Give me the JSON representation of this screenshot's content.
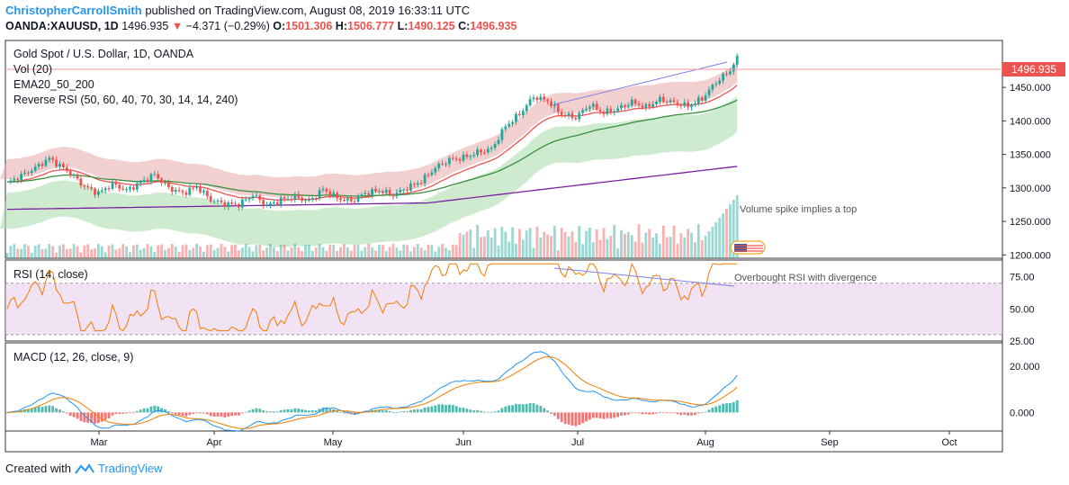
{
  "header": {
    "author": "ChristopherCarrollSmith",
    "published": "published on TradingView.com, August 08, 2019 16:33:11 UTC",
    "symbol": "OANDA:XAUUSD, 1D",
    "price": "1496.935",
    "change": "−4.371 (−0.29%)",
    "o_label": "O:",
    "o": "1501.306",
    "h_label": "H:",
    "h": "1506.777",
    "l_label": "L:",
    "l": "1490.125",
    "c_label": "C:",
    "c": "1496.935"
  },
  "legend": {
    "title": "Gold Spot / U.S. Dollar, 1D, OANDA",
    "vol": "Vol (20)",
    "ema": "EMA20_50_200",
    "rrsi": "Reverse RSI (50, 60, 40, 70, 30, 14, 14, 240)",
    "rsi": "RSI (14, close)",
    "macd": "MACD (12, 26, close, 9)"
  },
  "annotations": {
    "volume": "Volume spike implies a top",
    "rsi": "Overbought RSI with divergence"
  },
  "price_tag": "1496.935",
  "footer": {
    "created": "Created with",
    "brand": "TradingView"
  },
  "colors": {
    "up": "#26a69a",
    "down": "#ef5350",
    "ema20": "#ef5350",
    "ema50": "#388e3c",
    "ema200": "#7b1fa2",
    "rsi": "#f57c00",
    "macd": "#2196f3",
    "signal": "#f57c00",
    "trend": "#7b7fe8",
    "band_red": "#e8a9a9",
    "band_green": "#a8dba8"
  },
  "chart_data": [
    {
      "type": "candlestick",
      "title": "Gold Spot / U.S. Dollar, 1D, OANDA",
      "x_ticks": [
        "Mar",
        "Apr",
        "May",
        "Jun",
        "Jul",
        "Aug",
        "Sep",
        "Oct"
      ],
      "y_ticks": [
        "1200.000",
        "1250.000",
        "1300.000",
        "1350.000",
        "1400.000",
        "1450.000"
      ],
      "ylim": [
        1195,
        1520
      ],
      "anchors": [
        [
          0,
          1307
        ],
        [
          8,
          1330
        ],
        [
          12,
          1344
        ],
        [
          18,
          1322
        ],
        [
          22,
          1302
        ],
        [
          26,
          1292
        ],
        [
          30,
          1306
        ],
        [
          34,
          1296
        ],
        [
          38,
          1308
        ],
        [
          42,
          1320
        ],
        [
          46,
          1300
        ],
        [
          50,
          1292
        ],
        [
          54,
          1302
        ],
        [
          58,
          1282
        ],
        [
          62,
          1276
        ],
        [
          66,
          1275
        ],
        [
          70,
          1290
        ],
        [
          74,
          1273
        ],
        [
          78,
          1282
        ],
        [
          82,
          1287
        ],
        [
          86,
          1280
        ],
        [
          90,
          1298
        ],
        [
          94,
          1285
        ],
        [
          98,
          1280
        ],
        [
          102,
          1292
        ],
        [
          106,
          1296
        ],
        [
          110,
          1290
        ],
        [
          114,
          1300
        ],
        [
          118,
          1310
        ],
        [
          122,
          1330
        ],
        [
          126,
          1342
        ],
        [
          130,
          1345
        ],
        [
          134,
          1353
        ],
        [
          138,
          1358
        ],
        [
          142,
          1392
        ],
        [
          146,
          1410
        ],
        [
          150,
          1436
        ],
        [
          154,
          1430
        ],
        [
          158,
          1410
        ],
        [
          162,
          1405
        ],
        [
          166,
          1424
        ],
        [
          170,
          1412
        ],
        [
          174,
          1418
        ],
        [
          178,
          1428
        ],
        [
          182,
          1420
        ],
        [
          186,
          1432
        ],
        [
          190,
          1427
        ],
        [
          194,
          1422
        ],
        [
          198,
          1433
        ],
        [
          202,
          1458
        ],
        [
          206,
          1475
        ],
        [
          208,
          1497
        ]
      ],
      "series": [
        {
          "name": "EMA20"
        },
        {
          "name": "EMA50"
        },
        {
          "name": "EMA200"
        }
      ],
      "last": 1496.935
    },
    {
      "type": "line",
      "title": "RSI (14, close)",
      "y_ticks": [
        "75.00",
        "50.00",
        "25.00"
      ],
      "ylim": [
        25,
        88
      ],
      "band": [
        30,
        70
      ]
    },
    {
      "type": "line",
      "title": "MACD (12, 26, close, 9)",
      "y_ticks": [
        "20.000",
        "0.000"
      ],
      "ylim": [
        -8,
        30
      ],
      "series": [
        {
          "name": "MACD"
        },
        {
          "name": "Signal"
        }
      ]
    }
  ]
}
